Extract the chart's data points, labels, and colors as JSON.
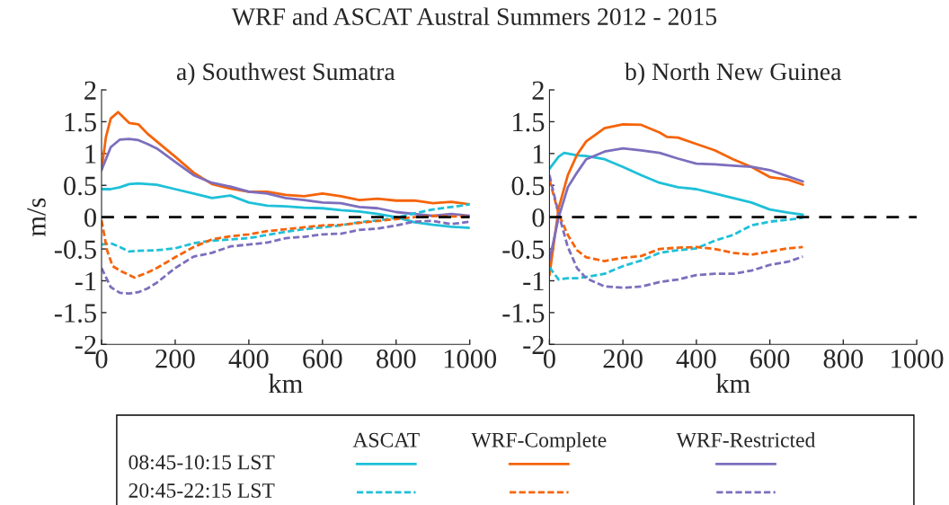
{
  "chart_data": [
    {
      "type": "line",
      "title": "WRF and ASCAT Austral Summers 2012 - 2015",
      "subtitle": "a) Southwest Sumatra",
      "xlabel": "km",
      "ylabel": "m/s",
      "xlim": [
        0,
        1000
      ],
      "xticks": [
        0,
        200,
        400,
        600,
        800,
        1000
      ],
      "ylim": [
        -2,
        2
      ],
      "yticks": [
        -2,
        -1.5,
        -1,
        -0.5,
        0,
        0.5,
        1,
        1.5,
        2
      ],
      "grid": false,
      "marker": "none",
      "annotations": [
        "ASCAT",
        "WRF-Complete",
        "WRF-Restricted",
        "08:45-10:15 LST",
        "20:45-22:15 LST"
      ],
      "ref_lines": [
        {
          "axis": "y",
          "value": 0,
          "color": "#000000",
          "line_style": "dashed"
        }
      ],
      "series": [
        {
          "color": "#1ec0d8",
          "line_style": "solid",
          "x": [
            0,
            25,
            50,
            75,
            100,
            150,
            200,
            250,
            300,
            350,
            400,
            450,
            500,
            550,
            600,
            650,
            700,
            750,
            800,
            850,
            900,
            950,
            1000
          ],
          "values": [
            0.44,
            0.44,
            0.47,
            0.52,
            0.53,
            0.51,
            0.44,
            0.37,
            0.3,
            0.34,
            0.23,
            0.18,
            0.17,
            0.15,
            0.14,
            0.11,
            0.09,
            0.05,
            0,
            -0.08,
            -0.12,
            -0.15,
            -0.17
          ]
        },
        {
          "color": "#f5640a",
          "line_style": "solid",
          "x": [
            0,
            12,
            25,
            45,
            75,
            100,
            125,
            150,
            200,
            250,
            300,
            350,
            400,
            450,
            500,
            550,
            600,
            650,
            700,
            750,
            800,
            850,
            900,
            950,
            1000
          ],
          "values": [
            0.75,
            1.26,
            1.55,
            1.65,
            1.48,
            1.46,
            1.31,
            1.19,
            0.95,
            0.7,
            0.52,
            0.45,
            0.4,
            0.4,
            0.35,
            0.33,
            0.37,
            0.33,
            0.27,
            0.29,
            0.26,
            0.26,
            0.22,
            0.24,
            0.2
          ]
        },
        {
          "color": "#7d6ebd",
          "line_style": "solid",
          "x": [
            0,
            25,
            50,
            75,
            100,
            125,
            150,
            200,
            250,
            300,
            350,
            400,
            450,
            500,
            550,
            600,
            650,
            700,
            750,
            800,
            850,
            900,
            950,
            1000
          ],
          "values": [
            0.74,
            1.1,
            1.22,
            1.23,
            1.21,
            1.15,
            1.08,
            0.87,
            0.66,
            0.54,
            0.48,
            0.4,
            0.37,
            0.3,
            0.27,
            0.23,
            0.22,
            0.16,
            0.14,
            0.08,
            0.05,
            0.02,
            0.05,
            0.02
          ]
        },
        {
          "color": "#1ec0d8",
          "line_style": "dashed",
          "x": [
            0,
            25,
            50,
            75,
            100,
            150,
            200,
            250,
            300,
            350,
            400,
            450,
            500,
            550,
            600,
            650,
            700,
            750,
            800,
            850,
            900,
            950,
            1000
          ],
          "values": [
            -0.43,
            -0.41,
            -0.47,
            -0.54,
            -0.53,
            -0.52,
            -0.49,
            -0.41,
            -0.37,
            -0.35,
            -0.33,
            -0.28,
            -0.23,
            -0.19,
            -0.16,
            -0.13,
            -0.08,
            -0.05,
            -0.01,
            0.06,
            0.12,
            0.16,
            0.2
          ]
        },
        {
          "color": "#f5640a",
          "line_style": "dashed",
          "x": [
            0,
            15,
            30,
            50,
            75,
            90,
            125,
            150,
            200,
            250,
            300,
            350,
            400,
            450,
            500,
            550,
            600,
            650,
            700,
            750,
            800,
            850,
            900,
            950,
            1000
          ],
          "values": [
            -0.05,
            -0.52,
            -0.77,
            -0.84,
            -0.91,
            -0.95,
            -0.87,
            -0.8,
            -0.63,
            -0.47,
            -0.35,
            -0.3,
            -0.27,
            -0.22,
            -0.19,
            -0.16,
            -0.13,
            -0.12,
            -0.09,
            -0.06,
            -0.03,
            0,
            0.02,
            0.01,
            0.01
          ]
        },
        {
          "color": "#7d6ebd",
          "line_style": "dashed",
          "x": [
            0,
            25,
            50,
            75,
            100,
            125,
            150,
            200,
            250,
            300,
            350,
            400,
            450,
            500,
            550,
            600,
            650,
            700,
            750,
            800,
            850,
            900,
            950,
            1000
          ],
          "values": [
            -0.8,
            -1.1,
            -1.19,
            -1.2,
            -1.18,
            -1.12,
            -1.03,
            -0.8,
            -0.62,
            -0.56,
            -0.46,
            -0.43,
            -0.4,
            -0.33,
            -0.31,
            -0.27,
            -0.26,
            -0.2,
            -0.18,
            -0.13,
            -0.07,
            -0.06,
            -0.11,
            -0.07
          ]
        }
      ]
    },
    {
      "type": "line",
      "subtitle": "b) North New Guinea",
      "xlabel": "km",
      "xlim": [
        0,
        1000
      ],
      "xticks": [
        0,
        200,
        400,
        600,
        800,
        1000
      ],
      "ylim": [
        -2,
        2
      ],
      "yticks": [
        -2,
        -1.5,
        -1,
        -0.5,
        0,
        0.5,
        1,
        1.5,
        2
      ],
      "grid": false,
      "marker": "none",
      "ref_lines": [
        {
          "axis": "y",
          "value": 0,
          "color": "#000000",
          "line_style": "dashed"
        }
      ],
      "series": [
        {
          "color": "#1ec0d8",
          "line_style": "solid",
          "x": [
            0,
            25,
            40,
            75,
            100,
            150,
            200,
            250,
            300,
            350,
            400,
            450,
            500,
            550,
            600,
            650,
            690
          ],
          "values": [
            0.76,
            0.95,
            1.01,
            0.97,
            0.96,
            0.91,
            0.79,
            0.66,
            0.54,
            0.47,
            0.44,
            0.37,
            0.3,
            0.23,
            0.12,
            0.07,
            0.04
          ]
        },
        {
          "color": "#f5640a",
          "line_style": "solid",
          "x": [
            0,
            25,
            50,
            75,
            100,
            150,
            200,
            250,
            300,
            320,
            350,
            400,
            450,
            500,
            550,
            600,
            650,
            690
          ],
          "values": [
            -0.91,
            0.14,
            0.66,
            0.98,
            1.19,
            1.4,
            1.46,
            1.45,
            1.33,
            1.26,
            1.25,
            1.15,
            1.05,
            0.91,
            0.79,
            0.63,
            0.59,
            0.51
          ]
        },
        {
          "color": "#7d6ebd",
          "line_style": "solid",
          "x": [
            0,
            25,
            50,
            75,
            100,
            150,
            200,
            250,
            300,
            350,
            400,
            450,
            500,
            550,
            600,
            650,
            690
          ],
          "values": [
            -0.68,
            0,
            0.47,
            0.7,
            0.91,
            1.03,
            1.08,
            1.05,
            1.01,
            0.92,
            0.84,
            0.83,
            0.81,
            0.79,
            0.74,
            0.64,
            0.56
          ]
        },
        {
          "color": "#1ec0d8",
          "line_style": "dashed",
          "x": [
            0,
            25,
            50,
            75,
            100,
            150,
            200,
            250,
            300,
            350,
            400,
            450,
            500,
            550,
            600,
            650,
            690
          ],
          "values": [
            -0.79,
            -0.98,
            -0.96,
            -0.96,
            -0.94,
            -0.89,
            -0.77,
            -0.68,
            -0.56,
            -0.52,
            -0.49,
            -0.37,
            -0.28,
            -0.13,
            -0.07,
            -0.04,
            -0.01
          ]
        },
        {
          "color": "#f5640a",
          "line_style": "dashed",
          "x": [
            0,
            25,
            50,
            75,
            100,
            150,
            200,
            250,
            300,
            350,
            400,
            450,
            500,
            550,
            600,
            650,
            690
          ],
          "values": [
            0.59,
            0.05,
            -0.28,
            -0.52,
            -0.63,
            -0.69,
            -0.64,
            -0.61,
            -0.5,
            -0.48,
            -0.47,
            -0.5,
            -0.56,
            -0.59,
            -0.54,
            -0.49,
            -0.47
          ]
        },
        {
          "color": "#7d6ebd",
          "line_style": "dashed",
          "x": [
            0,
            25,
            50,
            75,
            100,
            150,
            200,
            250,
            300,
            350,
            400,
            450,
            500,
            550,
            600,
            650,
            690
          ],
          "values": [
            0.66,
            0.05,
            -0.47,
            -0.8,
            -0.96,
            -1.09,
            -1.11,
            -1.09,
            -1.02,
            -0.98,
            -0.91,
            -0.89,
            -0.89,
            -0.84,
            -0.75,
            -0.7,
            -0.62
          ]
        }
      ]
    }
  ]
}
